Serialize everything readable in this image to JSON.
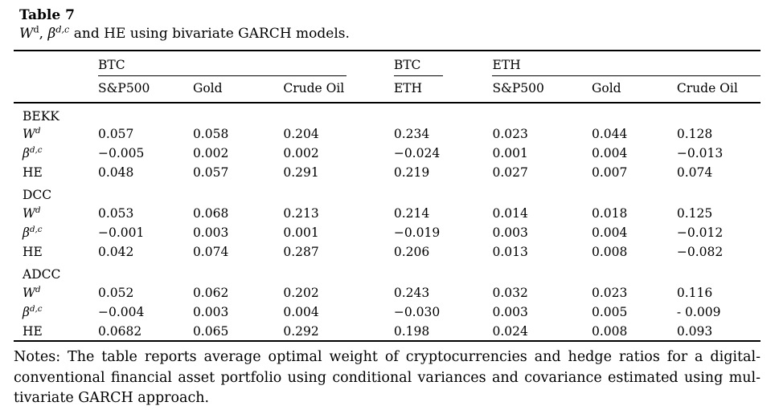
{
  "title": "Table 7",
  "subtitle": {
    "parts": [
      {
        "text": "W",
        "italic": true
      },
      {
        "text": "d",
        "sup": true
      },
      {
        "text": ", "
      },
      {
        "text": "β",
        "italic": true
      },
      {
        "text": "d,c",
        "sup": true,
        "italic": true
      },
      {
        "text": " and HE using bivariate GARCH models."
      }
    ]
  },
  "table": {
    "group_headers": [
      {
        "label": "BTC",
        "span": 3
      },
      {
        "label": "BTC",
        "span": 1
      },
      {
        "label": "ETH",
        "span": 3
      }
    ],
    "column_headers": [
      "S&P500",
      "Gold",
      "Crude Oil",
      "ETH",
      "S&P500",
      "Gold",
      "Crude Oil"
    ],
    "sections": [
      {
        "name": "BEKK",
        "rows": [
          {
            "label_parts": [
              {
                "text": "W",
                "italic": true
              },
              {
                "text": "d",
                "sup": true,
                "italic": true
              }
            ],
            "values": [
              "0.057",
              "0.058",
              "0.204",
              "0.234",
              "0.023",
              "0.044",
              "0.128"
            ]
          },
          {
            "label_parts": [
              {
                "text": "β",
                "italic": true
              },
              {
                "text": "d,c",
                "sup": true,
                "italic": true
              }
            ],
            "values": [
              "−0.005",
              "0.002",
              "0.002",
              "−0.024",
              "0.001",
              "0.004",
              "−0.013"
            ]
          },
          {
            "label_parts": [
              {
                "text": "HE"
              }
            ],
            "values": [
              "0.048",
              "0.057",
              "0.291",
              "0.219",
              "0.027",
              "0.007",
              "0.074"
            ]
          }
        ]
      },
      {
        "name": "DCC",
        "rows": [
          {
            "label_parts": [
              {
                "text": "W",
                "italic": true
              },
              {
                "text": "d",
                "sup": true,
                "italic": true
              }
            ],
            "values": [
              "0.053",
              "0.068",
              "0.213",
              "0.214",
              "0.014",
              "0.018",
              "0.125"
            ]
          },
          {
            "label_parts": [
              {
                "text": "β",
                "italic": true
              },
              {
                "text": "d,c",
                "sup": true,
                "italic": true
              }
            ],
            "values": [
              "−0.001",
              "0.003",
              "0.001",
              "−0.019",
              "0.003",
              "0.004",
              "−0.012"
            ]
          },
          {
            "label_parts": [
              {
                "text": "HE"
              }
            ],
            "values": [
              "0.042",
              "0.074",
              "0.287",
              "0.206",
              "0.013",
              "0.008",
              "−0.082"
            ]
          }
        ]
      },
      {
        "name": "ADCC",
        "rows": [
          {
            "label_parts": [
              {
                "text": "W",
                "italic": true
              },
              {
                "text": "d",
                "sup": true,
                "italic": true
              }
            ],
            "values": [
              "0.052",
              "0.062",
              "0.202",
              "0.243",
              "0.032",
              "0.023",
              "0.116"
            ]
          },
          {
            "label_parts": [
              {
                "text": "β",
                "italic": true
              },
              {
                "text": "d,c",
                "sup": true,
                "italic": true
              }
            ],
            "values": [
              "−0.004",
              "0.003",
              "0.004",
              "−0.030",
              "0.003",
              "0.005",
              "- 0.009"
            ]
          },
          {
            "label_parts": [
              {
                "text": "HE"
              }
            ],
            "values": [
              "0.0682",
              "0.065",
              "0.292",
              "0.198",
              "0.024",
              "0.008",
              "0.093"
            ]
          }
        ]
      }
    ]
  },
  "notes": {
    "lines": [
      "Notes: The table reports average optimal weight of cryptocurrencies and hedge ratios for a digital-",
      "conventional financial asset portfolio using conditional variances and covariance estimated using mul-",
      "tivariate GARCH approach."
    ]
  }
}
